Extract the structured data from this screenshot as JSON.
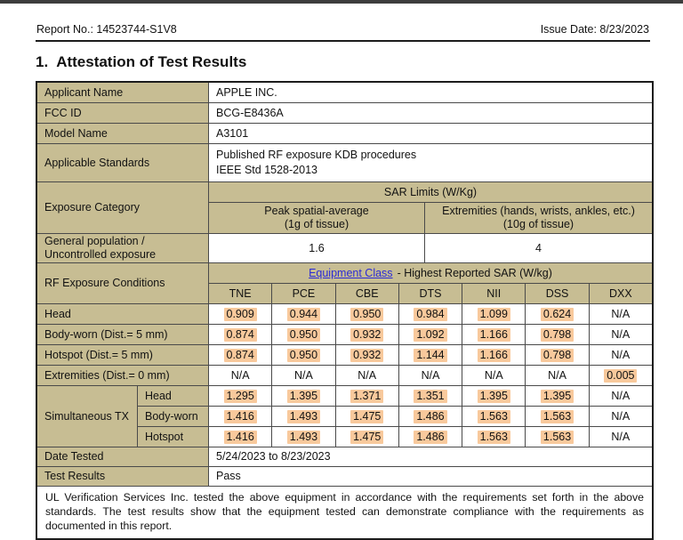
{
  "header": {
    "report_no": "Report No.: 14523744-S1V8",
    "issue_date": "Issue Date: 8/23/2023"
  },
  "title": {
    "number": "1.",
    "text": "Attestation of Test Results"
  },
  "table": {
    "applicant": {
      "label": "Applicant Name",
      "value": "APPLE INC."
    },
    "fcc_id": {
      "label": "FCC ID",
      "value": "BCG-E8436A"
    },
    "model": {
      "label": "Model Name",
      "value": "A3101"
    },
    "standards": {
      "label": "Applicable Standards",
      "lines": [
        "Published RF exposure KDB procedures",
        "IEEE Std 1528-2013"
      ]
    },
    "exposure_category": {
      "label": "Exposure Category",
      "sar_limits_header": "SAR Limits (W/Kg)",
      "peak": {
        "line1": "Peak spatial-average",
        "line2": "(1g of tissue)"
      },
      "extremities": {
        "line1": "Extremities (hands, wrists, ankles, etc.)",
        "line2": "(10g of tissue)"
      }
    },
    "general_population": {
      "label": "General population / Uncontrolled exposure",
      "peak_limit": "1.6",
      "extremities_limit": "4"
    },
    "rf_exposure": {
      "label": "RF Exposure Conditions",
      "equipment_class_link": "Equipment Class",
      "header_suffix": "- Highest Reported SAR (W/kg)",
      "columns": [
        "TNE",
        "PCE",
        "CBE",
        "DTS",
        "NII",
        "DSS",
        "DXX"
      ]
    },
    "sar_rows": [
      {
        "label": "Head",
        "values": [
          "0.909",
          "0.944",
          "0.950",
          "0.984",
          "1.099",
          "0.624",
          "N/A"
        ]
      },
      {
        "label": "Body-worn (Dist.= 5 mm)",
        "values": [
          "0.874",
          "0.950",
          "0.932",
          "1.092",
          "1.166",
          "0.798",
          "N/A"
        ]
      },
      {
        "label": "Hotspot (Dist.= 5 mm)",
        "values": [
          "0.874",
          "0.950",
          "0.932",
          "1.144",
          "1.166",
          "0.798",
          "N/A"
        ]
      },
      {
        "label": "Extremities (Dist.= 0 mm)",
        "values": [
          "N/A",
          "N/A",
          "N/A",
          "N/A",
          "N/A",
          "N/A",
          "0.005"
        ]
      }
    ],
    "simultaneous_tx": {
      "label": "Simultaneous TX",
      "rows": [
        {
          "label": "Head",
          "values": [
            "1.295",
            "1.395",
            "1.371",
            "1.351",
            "1.395",
            "1.395",
            "N/A"
          ]
        },
        {
          "label": "Body-worn",
          "values": [
            "1.416",
            "1.493",
            "1.475",
            "1.486",
            "1.563",
            "1.563",
            "N/A"
          ]
        },
        {
          "label": "Hotspot",
          "values": [
            "1.416",
            "1.493",
            "1.475",
            "1.486",
            "1.563",
            "1.563",
            "N/A"
          ]
        }
      ]
    },
    "date_tested": {
      "label": "Date Tested",
      "value": "5/24/2023 to 8/23/2023"
    },
    "test_results": {
      "label": "Test Results",
      "value": "Pass"
    },
    "footer_note": "UL Verification Services Inc. tested the above equipment in accordance with the requirements set forth in the above standards. The test results show that the equipment tested can demonstrate compliance with the requirements as documented in this report."
  },
  "colors": {
    "label_bg": "#c7bd93",
    "value_highlight": "#f8c99c",
    "link": "#2b2bd6",
    "border": "#4a4a4a"
  }
}
